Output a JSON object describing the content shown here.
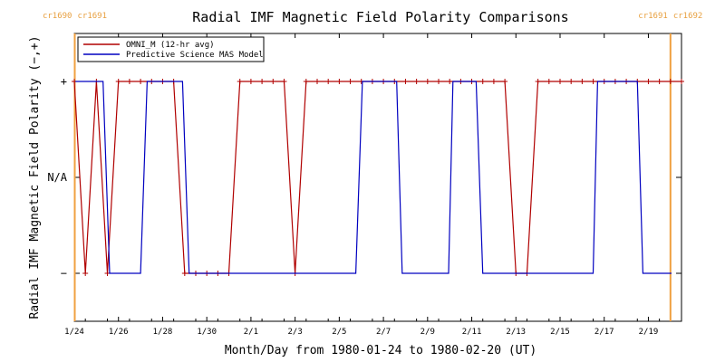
{
  "chart_data": {
    "type": "line",
    "title": "Radial IMF Magnetic Field Polarity Comparisons",
    "xlabel": "Month/Day from 1980-01-24 to 1980-02-20 (UT)",
    "ylabel": "Radial IMF Magnetic Field Polarity (−,+)",
    "xlim": [
      0,
      27.5
    ],
    "ylim": [
      -1.5,
      1.5
    ],
    "x_ticks": [
      {
        "x": 0,
        "label": "1/24"
      },
      {
        "x": 2,
        "label": "1/26"
      },
      {
        "x": 4,
        "label": "1/28"
      },
      {
        "x": 6,
        "label": "1/30"
      },
      {
        "x": 8,
        "label": "2/1"
      },
      {
        "x": 10,
        "label": "2/3"
      },
      {
        "x": 12,
        "label": "2/5"
      },
      {
        "x": 14,
        "label": "2/7"
      },
      {
        "x": 16,
        "label": "2/9"
      },
      {
        "x": 18,
        "label": "2/11"
      },
      {
        "x": 20,
        "label": "2/13"
      },
      {
        "x": 22,
        "label": "2/15"
      },
      {
        "x": 24,
        "label": "2/17"
      },
      {
        "x": 26,
        "label": "2/19"
      }
    ],
    "y_ticks": [
      {
        "y": 1,
        "label": "+"
      },
      {
        "y": 0,
        "label": "N/A"
      },
      {
        "y": -1,
        "label": "−"
      }
    ],
    "carrington": [
      {
        "x": 0.02,
        "left": "cr1690",
        "right": "cr1691"
      },
      {
        "x": 27.0,
        "left": "cr1691",
        "right": "cr1692"
      }
    ],
    "legend": {
      "position": "top-left",
      "entries": [
        {
          "label": "OMNI_M (12-hr avg)",
          "color": "#b00000"
        },
        {
          "label": "Predictive Science MAS Model",
          "color": "#0000c0"
        }
      ]
    },
    "series": [
      {
        "name": "OMNI_M (12-hr avg)",
        "color": "#b00000",
        "marker": "+",
        "points": [
          [
            0.0,
            1
          ],
          [
            0.5,
            -1
          ],
          [
            1.0,
            1
          ],
          [
            1.5,
            -1
          ],
          [
            2.0,
            1
          ],
          [
            2.5,
            1
          ],
          [
            3.0,
            1
          ],
          [
            3.5,
            1
          ],
          [
            4.0,
            1
          ],
          [
            4.5,
            1
          ],
          [
            5.0,
            -1
          ],
          [
            5.5,
            -1
          ],
          [
            6.0,
            -1
          ],
          [
            6.5,
            -1
          ],
          [
            7.0,
            -1
          ],
          [
            7.5,
            1
          ],
          [
            8.0,
            1
          ],
          [
            8.5,
            1
          ],
          [
            9.0,
            1
          ],
          [
            9.5,
            1
          ],
          [
            10.0,
            -1
          ],
          [
            10.5,
            1
          ],
          [
            11.0,
            1
          ],
          [
            11.5,
            1
          ],
          [
            12.0,
            1
          ],
          [
            12.5,
            1
          ],
          [
            13.0,
            1
          ],
          [
            13.5,
            1
          ],
          [
            14.0,
            1
          ],
          [
            14.5,
            1
          ],
          [
            15.0,
            1
          ],
          [
            15.5,
            1
          ],
          [
            16.0,
            1
          ],
          [
            16.5,
            1
          ],
          [
            17.0,
            1
          ],
          [
            17.5,
            1
          ],
          [
            18.0,
            1
          ],
          [
            18.5,
            1
          ],
          [
            19.0,
            1
          ],
          [
            19.5,
            1
          ],
          [
            20.0,
            -1
          ],
          [
            20.5,
            -1
          ],
          [
            21.0,
            1
          ],
          [
            21.5,
            1
          ],
          [
            22.0,
            1
          ],
          [
            22.5,
            1
          ],
          [
            23.0,
            1
          ],
          [
            23.5,
            1
          ],
          [
            24.0,
            1
          ],
          [
            24.5,
            1
          ],
          [
            25.0,
            1
          ],
          [
            25.5,
            1
          ],
          [
            26.0,
            1
          ],
          [
            26.5,
            1
          ],
          [
            27.0,
            1
          ],
          [
            27.5,
            1
          ]
        ]
      },
      {
        "name": "Predictive Science MAS Model",
        "color": "#0000c0",
        "points": [
          [
            0.05,
            1
          ],
          [
            0.15,
            1
          ],
          [
            0.2,
            1
          ],
          [
            1.3,
            1
          ],
          [
            1.6,
            -1
          ],
          [
            3.0,
            -1
          ],
          [
            3.3,
            1
          ],
          [
            4.9,
            1
          ],
          [
            5.2,
            -1
          ],
          [
            11.0,
            -1
          ],
          [
            12.75,
            -1
          ],
          [
            13.05,
            1
          ],
          [
            14.6,
            1
          ],
          [
            14.85,
            -1
          ],
          [
            16.95,
            -1
          ],
          [
            17.15,
            1
          ],
          [
            18.2,
            1
          ],
          [
            18.5,
            -1
          ],
          [
            23.5,
            -1
          ],
          [
            23.7,
            1
          ],
          [
            25.5,
            1
          ],
          [
            25.75,
            -1
          ],
          [
            27.05,
            -1
          ]
        ]
      }
    ]
  }
}
